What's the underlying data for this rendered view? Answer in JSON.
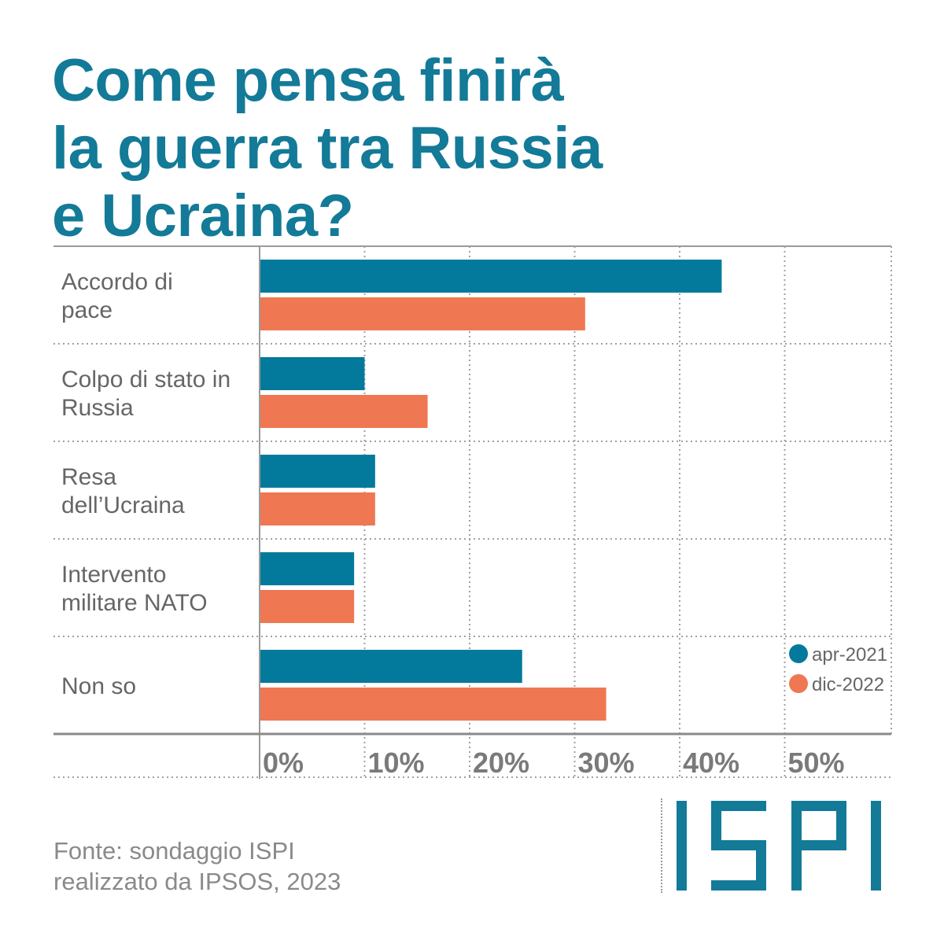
{
  "title_lines": [
    "Come pensa finirà",
    "la guerra tra Russia",
    "e Ucraina?"
  ],
  "colors": {
    "title": "#137a98",
    "series_apr": "#037a9b",
    "series_dic": "#ef7752",
    "text": "#666666",
    "logo": "#137a98"
  },
  "source_lines": [
    "Fonte: sondaggio ISPI",
    "realizzato da IPSOS, 2023"
  ],
  "logo": {
    "text": "ISPI"
  },
  "chart_data": {
    "type": "bar",
    "orientation": "horizontal",
    "title": "Come pensa finirà la guerra tra Russia e Ucraina?",
    "categories": [
      [
        "Accordo di",
        "pace"
      ],
      [
        "Colpo di stato in",
        "Russia"
      ],
      [
        "Resa",
        "dell’Ucraina"
      ],
      [
        "Intervento",
        "militare NATO"
      ],
      [
        "Non so"
      ]
    ],
    "series": [
      {
        "name": "apr-2021",
        "color": "#037a9b",
        "values": [
          44,
          10,
          11,
          9,
          25
        ]
      },
      {
        "name": "dic-2022",
        "color": "#ef7752",
        "values": [
          31,
          16,
          11,
          9,
          33
        ]
      }
    ],
    "xlim": [
      0,
      60
    ],
    "xticks": [
      0,
      10,
      20,
      30,
      40,
      50
    ],
    "xtick_labels": [
      "0%",
      "10%",
      "20%",
      "30%",
      "40%",
      "50%"
    ],
    "grid": true,
    "legend_position": "right"
  }
}
